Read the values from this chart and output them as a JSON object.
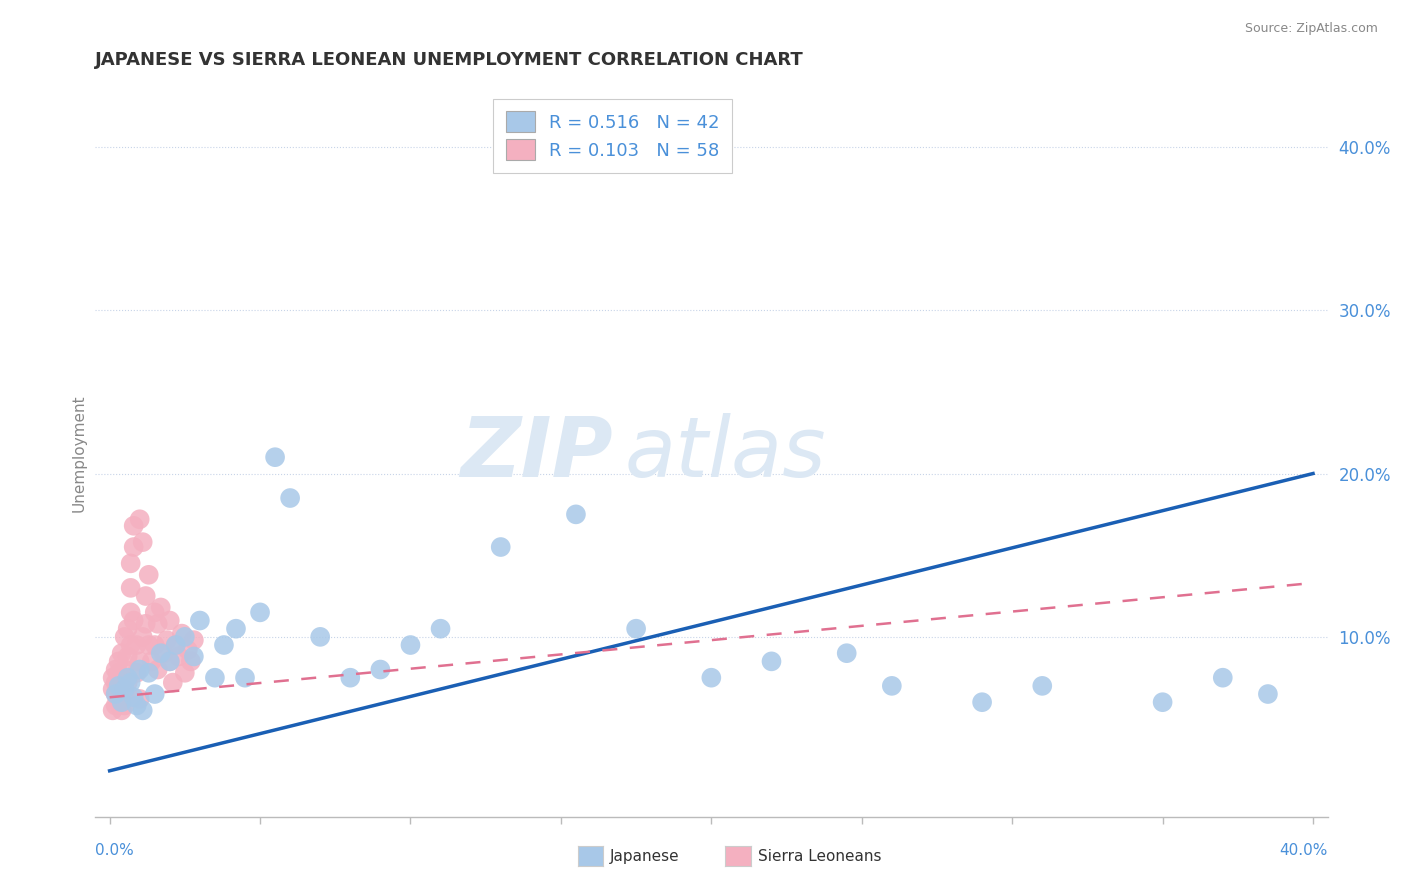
{
  "title": "JAPANESE VS SIERRA LEONEAN UNEMPLOYMENT CORRELATION CHART",
  "source": "Source: ZipAtlas.com",
  "ylabel": "Unemployment",
  "ytick_vals": [
    0.1,
    0.2,
    0.3,
    0.4
  ],
  "ytick_labels": [
    "10.0%",
    "20.0%",
    "30.0%",
    "40.0%"
  ],
  "xlim": [
    -0.005,
    0.405
  ],
  "ylim": [
    -0.01,
    0.435
  ],
  "japanese_color": "#a8c8e8",
  "sierra_color": "#f4b0c0",
  "trend_japanese_color": "#1a5fb4",
  "trend_sierra_color": "#e07090",
  "R_japanese": 0.516,
  "N_japanese": 42,
  "R_sierra": 0.103,
  "N_sierra": 58,
  "slope_jap": 0.455,
  "intercept_jap": 0.018,
  "slope_sier": 0.175,
  "intercept_sier": 0.063,
  "background_color": "#ffffff",
  "grid_color": "#c8d4e8",
  "watermark_color": "#dce8f4",
  "label_color": "#4a90d9",
  "tick_label_color": "#888888",
  "japanese_x": [
    0.002,
    0.003,
    0.004,
    0.005,
    0.006,
    0.007,
    0.008,
    0.009,
    0.01,
    0.011,
    0.013,
    0.015,
    0.017,
    0.02,
    0.022,
    0.025,
    0.028,
    0.03,
    0.035,
    0.038,
    0.042,
    0.045,
    0.05,
    0.055,
    0.06,
    0.07,
    0.08,
    0.09,
    0.1,
    0.11,
    0.13,
    0.155,
    0.175,
    0.2,
    0.22,
    0.245,
    0.26,
    0.29,
    0.31,
    0.35,
    0.37,
    0.385
  ],
  "japanese_y": [
    0.065,
    0.07,
    0.06,
    0.068,
    0.075,
    0.072,
    0.063,
    0.058,
    0.08,
    0.055,
    0.078,
    0.065,
    0.09,
    0.085,
    0.095,
    0.1,
    0.088,
    0.11,
    0.075,
    0.095,
    0.105,
    0.075,
    0.115,
    0.21,
    0.185,
    0.1,
    0.075,
    0.08,
    0.095,
    0.105,
    0.155,
    0.175,
    0.105,
    0.075,
    0.085,
    0.09,
    0.07,
    0.06,
    0.07,
    0.06,
    0.075,
    0.065
  ],
  "sierra_x": [
    0.001,
    0.001,
    0.001,
    0.002,
    0.002,
    0.002,
    0.002,
    0.003,
    0.003,
    0.003,
    0.003,
    0.004,
    0.004,
    0.004,
    0.004,
    0.005,
    0.005,
    0.005,
    0.005,
    0.006,
    0.006,
    0.006,
    0.007,
    0.007,
    0.007,
    0.007,
    0.008,
    0.008,
    0.008,
    0.009,
    0.009,
    0.01,
    0.01,
    0.01,
    0.011,
    0.011,
    0.012,
    0.012,
    0.013,
    0.013,
    0.014,
    0.015,
    0.015,
    0.016,
    0.016,
    0.017,
    0.018,
    0.019,
    0.02,
    0.02,
    0.021,
    0.022,
    0.023,
    0.024,
    0.025,
    0.026,
    0.027,
    0.028
  ],
  "sierra_y": [
    0.068,
    0.075,
    0.055,
    0.065,
    0.08,
    0.072,
    0.058,
    0.07,
    0.078,
    0.06,
    0.085,
    0.068,
    0.075,
    0.055,
    0.09,
    0.1,
    0.08,
    0.065,
    0.058,
    0.105,
    0.072,
    0.088,
    0.115,
    0.095,
    0.145,
    0.13,
    0.155,
    0.11,
    0.168,
    0.078,
    0.095,
    0.062,
    0.172,
    0.085,
    0.158,
    0.1,
    0.108,
    0.125,
    0.095,
    0.138,
    0.085,
    0.115,
    0.095,
    0.108,
    0.08,
    0.118,
    0.09,
    0.098,
    0.085,
    0.11,
    0.072,
    0.095,
    0.088,
    0.102,
    0.078,
    0.092,
    0.085,
    0.098
  ]
}
